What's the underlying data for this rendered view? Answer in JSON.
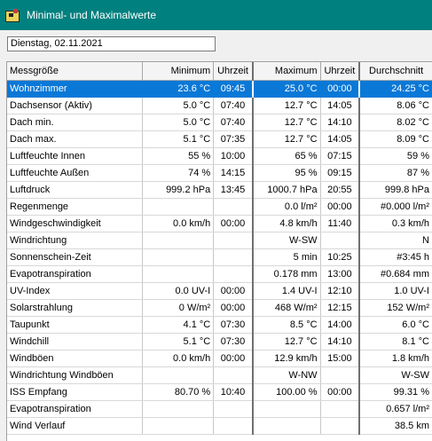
{
  "window": {
    "title": "Minimal- und Maximalwerte"
  },
  "date_field": {
    "value": "Dienstag, 02.11.2021"
  },
  "table": {
    "headers": {
      "name": "Messgröße",
      "min": "Minimum",
      "min_time": "Uhrzeit",
      "max": "Maximum",
      "max_time": "Uhrzeit",
      "avg": "Durchschnitt"
    },
    "rows": [
      {
        "name": "Wohnzimmer",
        "min": "23.6 °C",
        "min_time": "09:45",
        "max": "25.0 °C",
        "max_time": "00:00",
        "avg": "24.25 °C",
        "selected": true
      },
      {
        "name": "Dachsensor (Aktiv)",
        "min": "5.0 °C",
        "min_time": "07:40",
        "max": "12.7 °C",
        "max_time": "14:05",
        "avg": "8.06 °C"
      },
      {
        "name": "Dach min.",
        "min": "5.0 °C",
        "min_time": "07:40",
        "max": "12.7 °C",
        "max_time": "14:10",
        "avg": "8.02 °C"
      },
      {
        "name": "Dach max.",
        "min": "5.1 °C",
        "min_time": "07:35",
        "max": "12.7 °C",
        "max_time": "14:05",
        "avg": "8.09 °C"
      },
      {
        "name": "Luftfeuchte Innen",
        "min": "55 %",
        "min_time": "10:00",
        "max": "65 %",
        "max_time": "07:15",
        "avg": "59 %"
      },
      {
        "name": "Luftfeuchte Außen",
        "min": "74 %",
        "min_time": "14:15",
        "max": "95 %",
        "max_time": "09:15",
        "avg": "87 %"
      },
      {
        "name": "Luftdruck",
        "min": "999.2 hPa",
        "min_time": "13:45",
        "max": "1000.7 hPa",
        "max_time": "20:55",
        "avg": "999.8 hPa"
      },
      {
        "name": "Regenmenge",
        "min": "",
        "min_time": "",
        "max": "0.0 l/m²",
        "max_time": "00:00",
        "avg": "#0.000 l/m²"
      },
      {
        "name": "Windgeschwindigkeit",
        "min": "0.0 km/h",
        "min_time": "00:00",
        "max": "4.8 km/h",
        "max_time": "11:40",
        "avg": "0.3 km/h"
      },
      {
        "name": "Windrichtung",
        "min": "",
        "min_time": "",
        "max": "W-SW",
        "max_time": "",
        "avg": "N"
      },
      {
        "name": "Sonnenschein-Zeit",
        "min": "",
        "min_time": "",
        "max": "5 min",
        "max_time": "10:25",
        "avg": "#3:45 h"
      },
      {
        "name": "Evapotranspiration",
        "min": "",
        "min_time": "",
        "max": "0.178 mm",
        "max_time": "13:00",
        "avg": "#0.684 mm"
      },
      {
        "name": "UV-Index",
        "min": "0.0 UV-I",
        "min_time": "00:00",
        "max": "1.4 UV-I",
        "max_time": "12:10",
        "avg": "1.0 UV-I"
      },
      {
        "name": "Solarstrahlung",
        "min": "0 W/m²",
        "min_time": "00:00",
        "max": "468 W/m²",
        "max_time": "12:15",
        "avg": "152 W/m²"
      },
      {
        "name": "Taupunkt",
        "min": "4.1 °C",
        "min_time": "07:30",
        "max": "8.5 °C",
        "max_time": "14:00",
        "avg": "6.0 °C"
      },
      {
        "name": "Windchill",
        "min": "5.1 °C",
        "min_time": "07:30",
        "max": "12.7 °C",
        "max_time": "14:10",
        "avg": "8.1 °C"
      },
      {
        "name": "Windböen",
        "min": "0.0 km/h",
        "min_time": "00:00",
        "max": "12.9 km/h",
        "max_time": "15:00",
        "avg": "1.8 km/h"
      },
      {
        "name": "Windrichtung Windböen",
        "min": "",
        "min_time": "",
        "max": "W-NW",
        "max_time": "",
        "avg": "W-SW"
      },
      {
        "name": "ISS Empfang",
        "min": "80.70 %",
        "min_time": "10:40",
        "max": "100.00 %",
        "max_time": "00:00",
        "avg": "99.31 %"
      },
      {
        "name": "Evapotranspiration",
        "min": "",
        "min_time": "",
        "max": "",
        "max_time": "",
        "avg": "0.657 l/m²"
      },
      {
        "name": "Wind Verlauf",
        "min": "",
        "min_time": "",
        "max": "",
        "max_time": "",
        "avg": "38.5 km"
      }
    ]
  },
  "colors": {
    "titlebar": "#00807f",
    "selection": "#0a78d7"
  }
}
